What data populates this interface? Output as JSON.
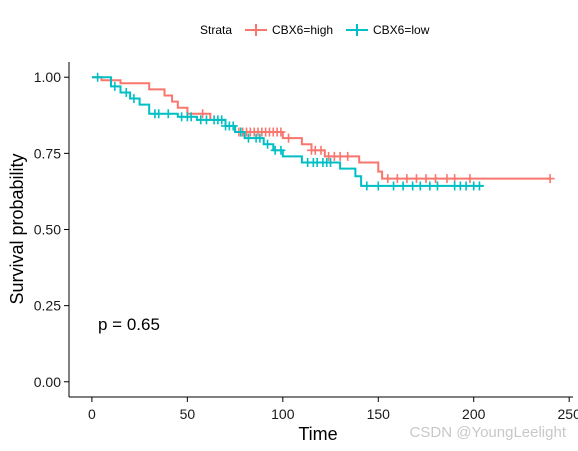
{
  "chart_data": {
    "type": "line",
    "subtype": "kaplan-meier",
    "title": "",
    "xlabel": "Time",
    "ylabel": "Survival probability",
    "xlim": [
      -12,
      252
    ],
    "ylim": [
      -0.05,
      1.05
    ],
    "x_ticks": [
      0,
      50,
      100,
      150,
      200,
      250
    ],
    "y_ticks": [
      0,
      0.25,
      0.5,
      0.75,
      1
    ],
    "x_tick_labels": [
      "0",
      "50",
      "100",
      "150",
      "200",
      "250"
    ],
    "y_tick_labels": [
      "0.00",
      "0.25",
      "0.50",
      "0.75",
      "1.00"
    ],
    "grid": false,
    "legend": {
      "title": "Strata",
      "placement": "top",
      "entries": [
        "CBX6=high",
        "CBX6=low"
      ]
    },
    "annotation": "p = 0.65",
    "series": [
      {
        "name": "CBX6=high",
        "color": "#F8766D",
        "steps": [
          [
            0,
            1.0
          ],
          [
            5,
            0.99
          ],
          [
            15,
            0.98
          ],
          [
            30,
            0.96
          ],
          [
            38,
            0.94
          ],
          [
            42,
            0.92
          ],
          [
            45,
            0.9
          ],
          [
            50,
            0.88
          ],
          [
            62,
            0.86
          ],
          [
            70,
            0.84
          ],
          [
            75,
            0.82
          ],
          [
            100,
            0.8
          ],
          [
            110,
            0.78
          ],
          [
            115,
            0.76
          ],
          [
            122,
            0.74
          ],
          [
            140,
            0.72
          ],
          [
            150,
            0.69
          ],
          [
            152,
            0.667
          ],
          [
            240,
            0.667
          ]
        ],
        "censored": [
          58,
          77,
          79,
          81,
          83,
          85,
          87,
          89,
          91,
          93,
          95,
          97,
          99,
          103,
          115,
          117,
          120,
          124,
          127,
          130,
          134,
          155,
          160,
          165,
          170,
          175,
          180,
          186,
          190,
          198,
          240
        ]
      },
      {
        "name": "CBX6=low",
        "color": "#00BFC4",
        "steps": [
          [
            0,
            1.0
          ],
          [
            10,
            0.97
          ],
          [
            15,
            0.95
          ],
          [
            20,
            0.93
          ],
          [
            25,
            0.91
          ],
          [
            30,
            0.88
          ],
          [
            45,
            0.87
          ],
          [
            55,
            0.86
          ],
          [
            70,
            0.84
          ],
          [
            75,
            0.82
          ],
          [
            80,
            0.8
          ],
          [
            90,
            0.78
          ],
          [
            95,
            0.76
          ],
          [
            100,
            0.74
          ],
          [
            110,
            0.72
          ],
          [
            130,
            0.7
          ],
          [
            138,
            0.675
          ],
          [
            141,
            0.643
          ],
          [
            205,
            0.643
          ]
        ],
        "censored": [
          3,
          12,
          18,
          22,
          33,
          35,
          40,
          47,
          50,
          52,
          57,
          60,
          64,
          66,
          68,
          70,
          72,
          74,
          78,
          82,
          86,
          88,
          92,
          96,
          99,
          113,
          116,
          118,
          121,
          123,
          125,
          144,
          150,
          158,
          163,
          168,
          172,
          177,
          181,
          190,
          193,
          196,
          200,
          203
        ]
      }
    ]
  },
  "watermark": "CSDN @YoungLeelight"
}
